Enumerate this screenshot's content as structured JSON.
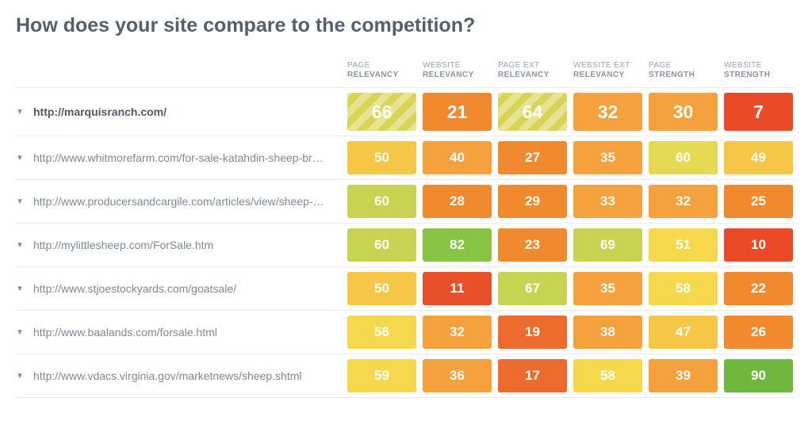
{
  "title": "How does your site compare to the competition?",
  "columns": [
    {
      "top": "PAGE",
      "bot": "RELEVANCY"
    },
    {
      "top": "WEBSITE",
      "bot": "RELEVANCY"
    },
    {
      "top": "PAGE EXT",
      "bot": "RELEVANCY"
    },
    {
      "top": "WEBSITE EXT",
      "bot": "RELEVANCY"
    },
    {
      "top": "PAGE",
      "bot": "STRENGTH"
    },
    {
      "top": "WEBSITE",
      "bot": "STRENGTH"
    }
  ],
  "rows": [
    {
      "url": "http://marquisranch.com/",
      "bold": true,
      "big": true,
      "scores": [
        {
          "value": 66,
          "color": "#d8d556",
          "striped": true
        },
        {
          "value": 21,
          "color": "#f1892e",
          "striped": false
        },
        {
          "value": 64,
          "color": "#d8d556",
          "striped": true
        },
        {
          "value": 32,
          "color": "#f4a13e",
          "striped": false
        },
        {
          "value": 30,
          "color": "#f4a13e",
          "striped": false
        },
        {
          "value": 7,
          "color": "#ea4a27",
          "striped": false
        }
      ]
    },
    {
      "url": "http://www.whitmorefarm.com/for-sale-katahdin-sheep-br…",
      "bold": false,
      "big": false,
      "scores": [
        {
          "value": 50,
          "color": "#f6c647"
        },
        {
          "value": 40,
          "color": "#f4a13e"
        },
        {
          "value": 27,
          "color": "#f1892e"
        },
        {
          "value": 35,
          "color": "#f4a13e"
        },
        {
          "value": 60,
          "color": "#e6da55"
        },
        {
          "value": 49,
          "color": "#f6c647"
        }
      ]
    },
    {
      "url": "http://www.producersandcargile.com/articles/view/sheep-…",
      "bold": false,
      "big": false,
      "scores": [
        {
          "value": 60,
          "color": "#c8d352"
        },
        {
          "value": 28,
          "color": "#f1892e"
        },
        {
          "value": 29,
          "color": "#f1892e"
        },
        {
          "value": 33,
          "color": "#f4a13e"
        },
        {
          "value": 32,
          "color": "#f4a13e"
        },
        {
          "value": 25,
          "color": "#f1892e"
        }
      ]
    },
    {
      "url": "http://mylittlesheep.com/ForSale.htm",
      "bold": false,
      "big": false,
      "scores": [
        {
          "value": 60,
          "color": "#c8d352"
        },
        {
          "value": 82,
          "color": "#88c443"
        },
        {
          "value": 23,
          "color": "#f1892e"
        },
        {
          "value": 69,
          "color": "#c8d352"
        },
        {
          "value": 51,
          "color": "#f6d84d"
        },
        {
          "value": 10,
          "color": "#ea4a27"
        }
      ]
    },
    {
      "url": "http://www.stjoestockyards.com/goatsale/",
      "bold": false,
      "big": false,
      "scores": [
        {
          "value": 50,
          "color": "#f6c647"
        },
        {
          "value": 11,
          "color": "#e8502a"
        },
        {
          "value": 67,
          "color": "#c8d352"
        },
        {
          "value": 35,
          "color": "#f4a13e"
        },
        {
          "value": 58,
          "color": "#f6d84d"
        },
        {
          "value": 22,
          "color": "#f1892e"
        }
      ]
    },
    {
      "url": "http://www.baalands.com/forsale.html",
      "bold": false,
      "big": false,
      "scores": [
        {
          "value": 56,
          "color": "#f6d84d"
        },
        {
          "value": 32,
          "color": "#f4a13e"
        },
        {
          "value": 19,
          "color": "#ed6b2c"
        },
        {
          "value": 38,
          "color": "#f4a13e"
        },
        {
          "value": 47,
          "color": "#f6c647"
        },
        {
          "value": 26,
          "color": "#f1892e"
        }
      ]
    },
    {
      "url": "http://www.vdacs.virginia.gov/marketnews/sheep.shtml",
      "bold": false,
      "big": false,
      "scores": [
        {
          "value": 59,
          "color": "#f6d84d"
        },
        {
          "value": 36,
          "color": "#f4a13e"
        },
        {
          "value": 17,
          "color": "#ed6b2c"
        },
        {
          "value": 58,
          "color": "#f6d84d"
        },
        {
          "value": 39,
          "color": "#f4a13e"
        },
        {
          "value": 90,
          "color": "#70b83d"
        }
      ]
    }
  ]
}
